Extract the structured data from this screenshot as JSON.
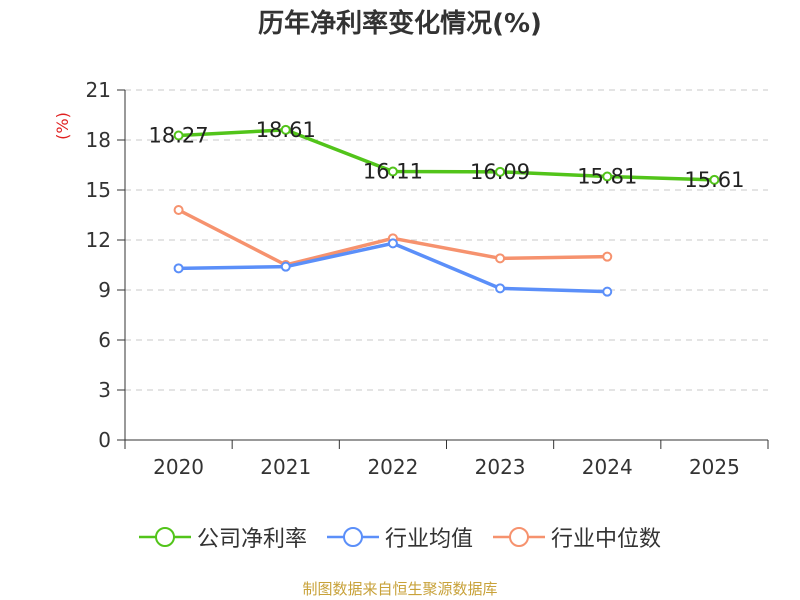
{
  "chart_data": {
    "type": "line",
    "title": "历年净利率变化情况(%)",
    "ylabel": "(%)",
    "xlabel": "",
    "categories": [
      "2020",
      "2021",
      "2022",
      "2023",
      "2024",
      "2025"
    ],
    "ylim": [
      0,
      21
    ],
    "yticks": [
      0,
      3,
      6,
      9,
      12,
      15,
      18,
      21
    ],
    "grid": true,
    "legend_position": "bottom",
    "series": [
      {
        "name": "公司净利率",
        "color": "#52c41a",
        "values": [
          18.27,
          18.61,
          16.11,
          16.09,
          15.81,
          15.61
        ],
        "show_labels": true
      },
      {
        "name": "行业均值",
        "color": "#5b8ff9",
        "values": [
          10.3,
          10.4,
          11.8,
          9.1,
          8.9,
          null
        ],
        "show_labels": false
      },
      {
        "name": "行业中位数",
        "color": "#f6926e",
        "values": [
          13.8,
          10.5,
          12.1,
          10.9,
          11.0,
          null
        ],
        "show_labels": false
      }
    ]
  },
  "source_note": "制图数据来自恒生聚源数据库"
}
